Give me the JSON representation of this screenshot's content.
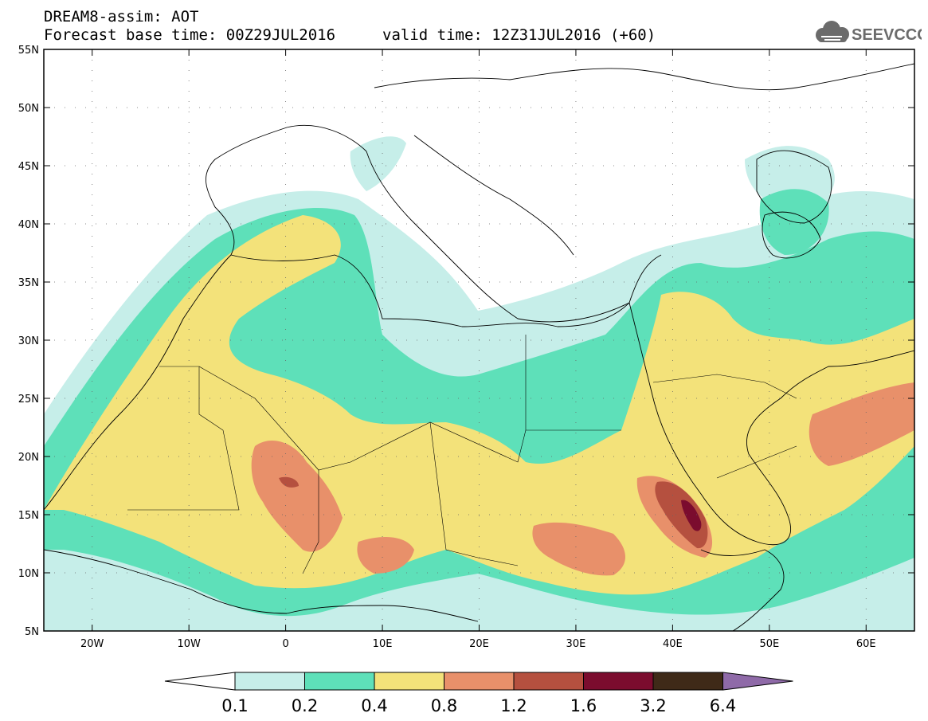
{
  "header": {
    "title_line1": "DREAM8-assim: AOT",
    "title_line2": "Forecast base time: 00Z29JUL2016",
    "valid_time": "valid time: 12Z31JUL2016 (+60)",
    "logo_text": "SEEVCCC"
  },
  "map": {
    "variable": "AOT",
    "lon_range": [
      -25,
      65
    ],
    "lat_range": [
      5,
      55
    ],
    "y_ticks": [
      "55N",
      "50N",
      "45N",
      "40N",
      "35N",
      "30N",
      "25N",
      "20N",
      "15N",
      "10N",
      "5N"
    ],
    "x_ticks": [
      "20W",
      "10W",
      "0",
      "10E",
      "20E",
      "30E",
      "40E",
      "50E",
      "60E"
    ]
  },
  "colorbar": {
    "labels": [
      "0.1",
      "0.2",
      "0.4",
      "0.8",
      "1.2",
      "1.6",
      "3.2",
      "6.4"
    ],
    "colors": [
      "#ffffff",
      "#c6eee9",
      "#5ee0b9",
      "#f3e27a",
      "#e8906a",
      "#b5503f",
      "#7b0c2e",
      "#3f2a18",
      "#8f6aa8"
    ]
  },
  "colors": {
    "c1": "#c6eee9",
    "c2": "#5ee0b9",
    "c3": "#f3e27a",
    "c4": "#e8906a",
    "c5": "#b5503f",
    "c6": "#7b0c2e",
    "border": "#000000"
  }
}
